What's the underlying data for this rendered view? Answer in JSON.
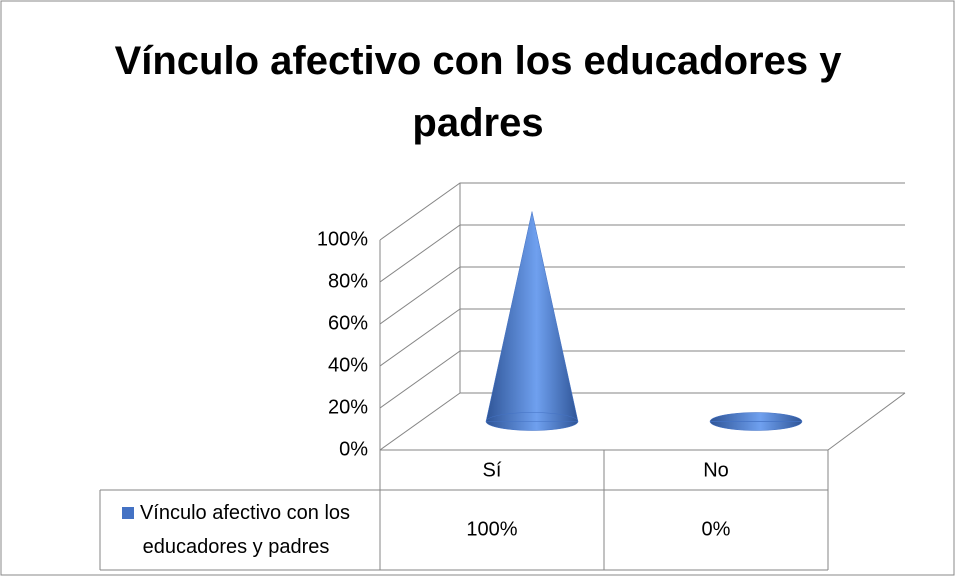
{
  "chart_data": {
    "type": "cone3d",
    "title": "Vínculo afectivo con los educadores y padres",
    "categories": [
      "Sí",
      "No"
    ],
    "series": [
      {
        "name": "Vínculo afectivo con los educadores y padres",
        "color": "#4472c4",
        "values": [
          100,
          0
        ],
        "value_labels": [
          "100%",
          "0%"
        ]
      }
    ],
    "ylim": [
      0,
      100
    ],
    "yticks": [
      {
        "value": 0,
        "label": "0%"
      },
      {
        "value": 20,
        "label": "20%"
      },
      {
        "value": 40,
        "label": "40%"
      },
      {
        "value": 60,
        "label": "60%"
      },
      {
        "value": 80,
        "label": "80%"
      },
      {
        "value": 100,
        "label": "100%"
      }
    ],
    "grid": true,
    "data_table": true
  }
}
